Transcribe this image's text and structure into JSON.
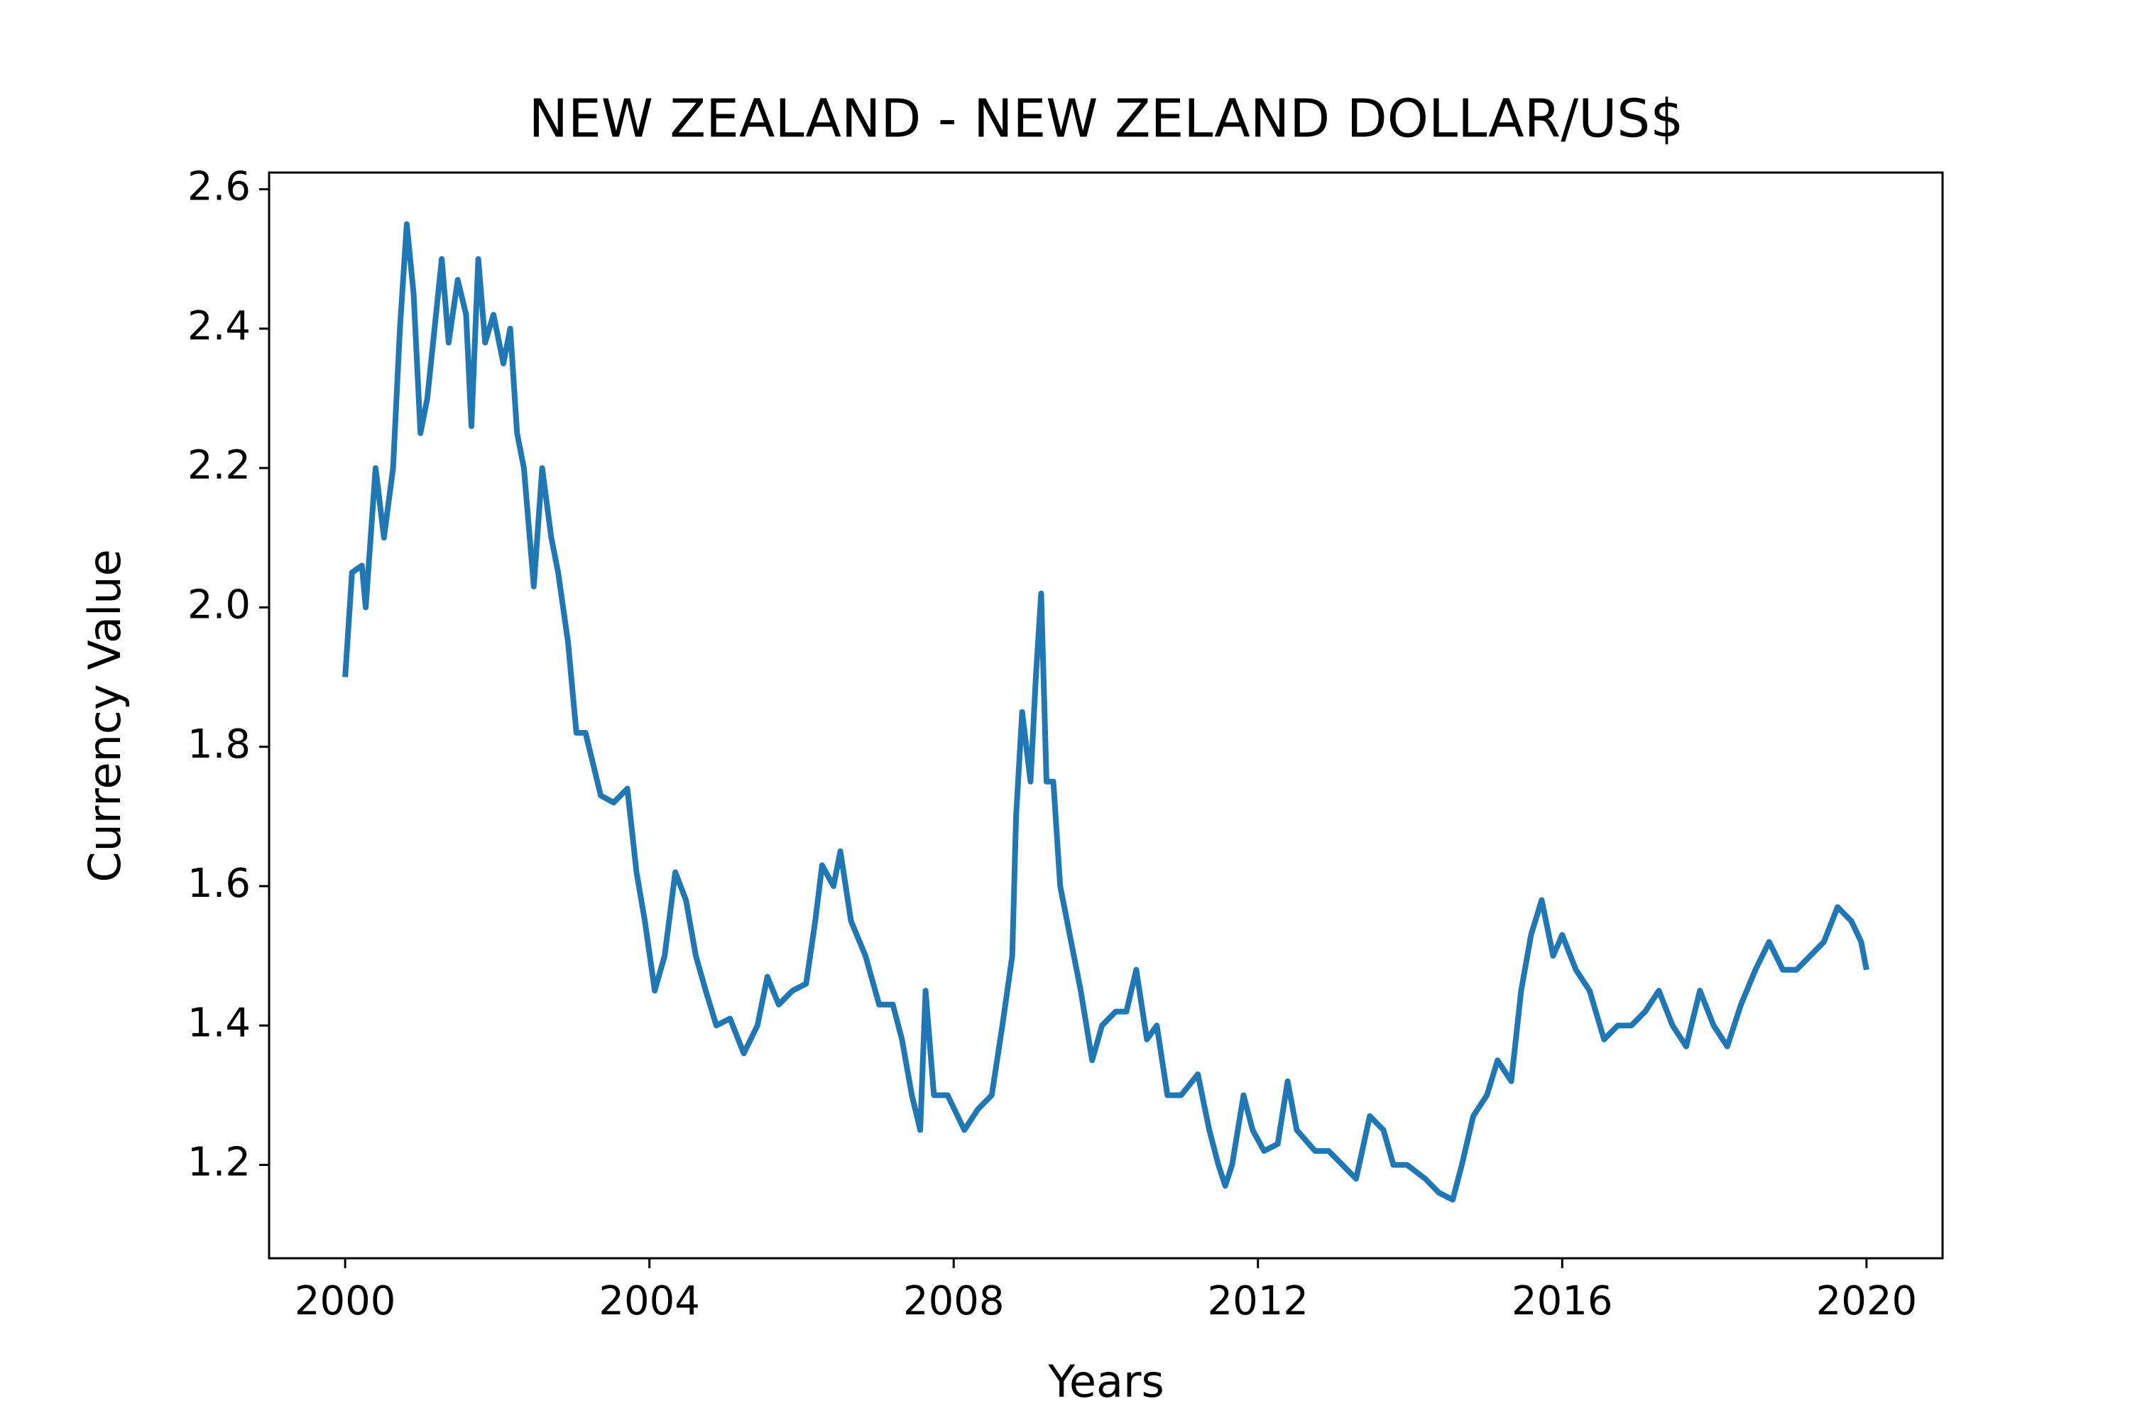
{
  "chart_data": {
    "type": "line",
    "title": "NEW ZEALAND - NEW ZELAND DOLLAR/US$",
    "x_label": "Years",
    "y_label": "Currency Value",
    "color": "#1f77b4",
    "xlim": [
      1999,
      2021
    ],
    "ylim": [
      1.066,
      2.624
    ],
    "xticks": [
      2000,
      2004,
      2008,
      2012,
      2016,
      2020
    ],
    "yticks": [
      1.2,
      1.4,
      1.6,
      1.8,
      {
        "value": 2,
        "label": "2.0"
      },
      2.2,
      2.4,
      2.6
    ],
    "grid": false,
    "x": [
      2000,
      2000.09,
      2000.22,
      2000.27,
      2000.4,
      2000.51,
      2000.63,
      2000.72,
      2000.81,
      2000.9,
      2000.99,
      2001.08,
      2001.27,
      2001.36,
      2001.48,
      2001.59,
      2001.66,
      2001.75,
      2001.84,
      2001.95,
      2002.08,
      2002.17,
      2002.26,
      2002.35,
      2002.48,
      2002.59,
      2002.71,
      2002.8,
      2002.93,
      2003.04,
      2003.16,
      2003.36,
      2003.53,
      2003.71,
      2003.83,
      2003.94,
      2004.07,
      2004.2,
      2004.34,
      2004.48,
      2004.61,
      2004.74,
      2004.88,
      2005.06,
      2005.24,
      2005.42,
      2005.55,
      2005.7,
      2005.88,
      2006.06,
      2006.18,
      2006.27,
      2006.42,
      2006.51,
      2006.65,
      2006.84,
      2007.02,
      2007.2,
      2007.32,
      2007.45,
      2007.56,
      2007.63,
      2007.74,
      2007.92,
      2008.14,
      2008.32,
      2008.5,
      2008.64,
      2008.77,
      2008.82,
      2008.9,
      2009.01,
      2009.08,
      2009.15,
      2009.22,
      2009.31,
      2009.4,
      2009.49,
      2009.67,
      2009.82,
      2009.95,
      2010.13,
      2010.27,
      2010.4,
      2010.54,
      2010.67,
      2010.81,
      2010.99,
      2011.21,
      2011.36,
      2011.48,
      2011.57,
      2011.66,
      2011.81,
      2011.93,
      2012.08,
      2012.26,
      2012.39,
      2012.51,
      2012.75,
      2012.93,
      2013.11,
      2013.29,
      2013.47,
      2013.65,
      2013.78,
      2013.96,
      2014.2,
      2014.38,
      2014.56,
      2014.68,
      2014.83,
      2015.01,
      2015.15,
      2015.33,
      2015.46,
      2015.59,
      2015.73,
      2015.88,
      2016.0,
      2016.18,
      2016.36,
      2016.55,
      2016.73,
      2016.91,
      2017.09,
      2017.27,
      2017.45,
      2017.63,
      2017.81,
      2017.99,
      2018.17,
      2018.35,
      2018.54,
      2018.72,
      2018.9,
      2019.08,
      2019.26,
      2019.44,
      2019.62,
      2019.8,
      2019.93,
      2020.0
    ],
    "values": [
      1.9,
      2.05,
      2.06,
      2.0,
      2.2,
      2.1,
      2.2,
      2.4,
      2.55,
      2.45,
      2.25,
      2.3,
      2.5,
      2.38,
      2.47,
      2.42,
      2.26,
      2.5,
      2.38,
      2.42,
      2.35,
      2.4,
      2.25,
      2.2,
      2.03,
      2.2,
      2.1,
      2.05,
      1.95,
      1.82,
      1.82,
      1.73,
      1.72,
      1.74,
      1.62,
      1.55,
      1.45,
      1.5,
      1.62,
      1.58,
      1.5,
      1.45,
      1.4,
      1.41,
      1.36,
      1.4,
      1.47,
      1.43,
      1.45,
      1.46,
      1.55,
      1.63,
      1.6,
      1.65,
      1.55,
      1.5,
      1.43,
      1.43,
      1.38,
      1.3,
      1.25,
      1.45,
      1.3,
      1.3,
      1.25,
      1.28,
      1.3,
      1.4,
      1.5,
      1.7,
      1.85,
      1.75,
      1.9,
      2.02,
      1.75,
      1.75,
      1.6,
      1.55,
      1.45,
      1.35,
      1.4,
      1.42,
      1.42,
      1.48,
      1.38,
      1.4,
      1.3,
      1.3,
      1.33,
      1.25,
      1.2,
      1.17,
      1.2,
      1.3,
      1.25,
      1.22,
      1.23,
      1.32,
      1.25,
      1.22,
      1.22,
      1.2,
      1.18,
      1.27,
      1.25,
      1.2,
      1.2,
      1.18,
      1.16,
      1.15,
      1.2,
      1.27,
      1.3,
      1.35,
      1.32,
      1.45,
      1.53,
      1.58,
      1.5,
      1.53,
      1.48,
      1.45,
      1.38,
      1.4,
      1.4,
      1.42,
      1.45,
      1.4,
      1.37,
      1.45,
      1.4,
      1.37,
      1.43,
      1.48,
      1.52,
      1.48,
      1.48,
      1.5,
      1.52,
      1.57,
      1.55,
      1.52,
      1.48
    ]
  }
}
